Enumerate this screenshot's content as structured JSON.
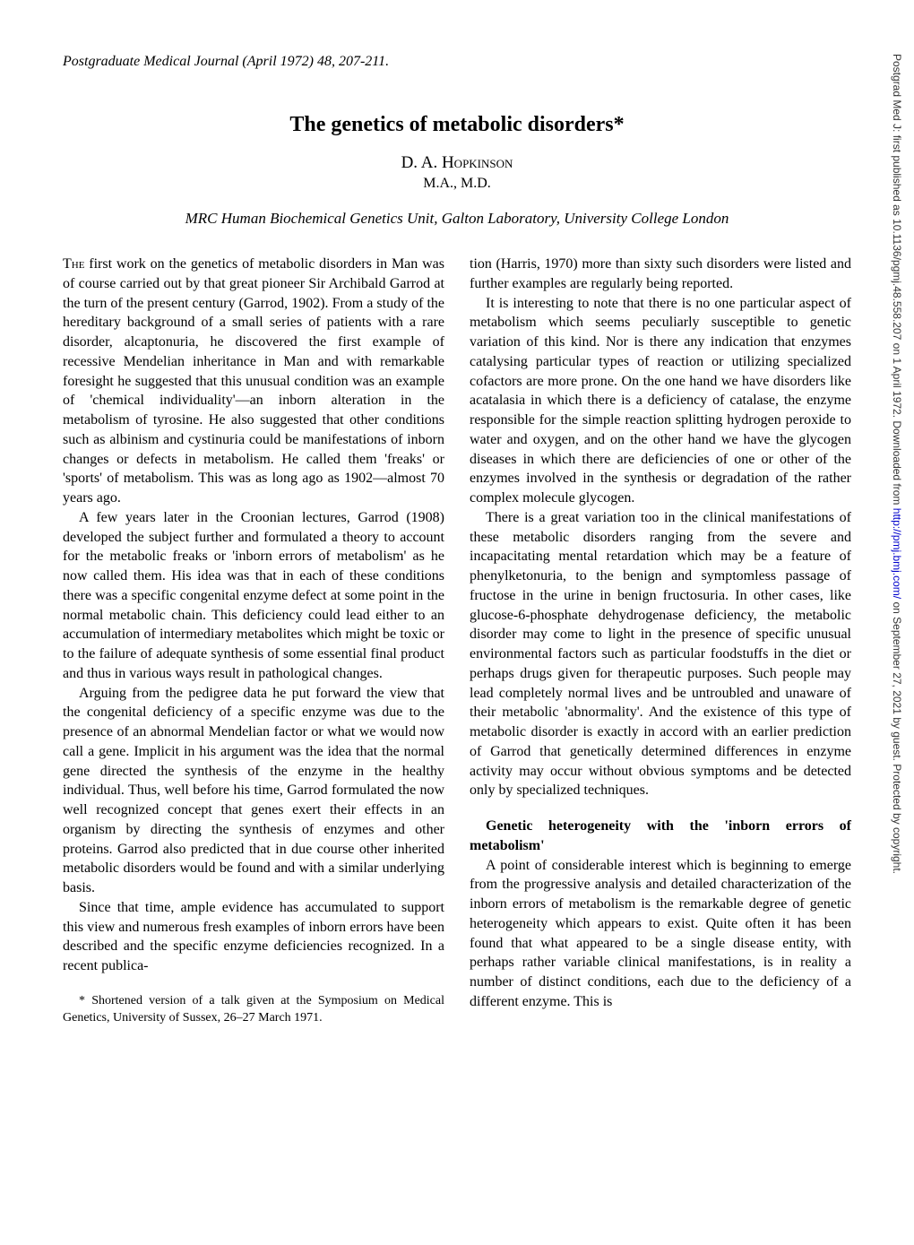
{
  "journal_header": "Postgraduate Medical Journal (April 1972) 48, 207-211.",
  "title": "The genetics of metabolic disorders*",
  "author": "D. A. Hopkinson",
  "degrees": "M.A., M.D.",
  "affiliation": "MRC Human Biochemical Genetics Unit, Galton Laboratory, University College London",
  "left_column": {
    "p1_first": "The",
    "p1": " first work on the genetics of metabolic disorders in Man was of course carried out by that great pioneer Sir Archibald Garrod at the turn of the present century (Garrod, 1902). From a study of the hereditary background of a small series of patients with a rare disorder, alcaptonuria, he discovered the first example of recessive Mendelian inheritance in Man and with remarkable foresight he suggested that this unusual condition was an example of 'chemical individuality'—an inborn alteration in the metabolism of tyrosine. He also suggested that other conditions such as albinism and cystinuria could be manifestations of inborn changes or defects in metabolism. He called them 'freaks' or 'sports' of metabolism. This was as long ago as 1902—almost 70 years ago.",
    "p2": "A few years later in the Croonian lectures, Garrod (1908) developed the subject further and formulated a theory to account for the metabolic freaks or 'inborn errors of metabolism' as he now called them. His idea was that in each of these conditions there was a specific congenital enzyme defect at some point in the normal metabolic chain. This deficiency could lead either to an accumulation of intermediary metabolites which might be toxic or to the failure of adequate synthesis of some essential final product and thus in various ways result in pathological changes.",
    "p3": "Arguing from the pedigree data he put forward the view that the congenital deficiency of a specific enzyme was due to the presence of an abnormal Mendelian factor or what we would now call a gene. Implicit in his argument was the idea that the normal gene directed the synthesis of the enzyme in the healthy individual. Thus, well before his time, Garrod formulated the now well recognized concept that genes exert their effects in an organism by directing the synthesis of enzymes and other proteins. Garrod also predicted that in due course other inherited metabolic disorders would be found and with a similar underlying basis.",
    "p4": "Since that time, ample evidence has accumulated to support this view and numerous fresh examples of inborn errors have been described and the specific enzyme deficiencies recognized. In a recent publica-",
    "footnote": "* Shortened version of a talk given at the Symposium on Medical Genetics, University of Sussex, 26–27 March 1971."
  },
  "right_column": {
    "p1": "tion (Harris, 1970) more than sixty such disorders were listed and further examples are regularly being reported.",
    "p2": "It is interesting to note that there is no one particular aspect of metabolism which seems peculiarly susceptible to genetic variation of this kind. Nor is there any indication that enzymes catalysing particular types of reaction or utilizing specialized cofactors are more prone. On the one hand we have disorders like acatalasia in which there is a deficiency of catalase, the enzyme responsible for the simple reaction splitting hydrogen peroxide to water and oxygen, and on the other hand we have the glycogen diseases in which there are deficiencies of one or other of the enzymes involved in the synthesis or degradation of the rather complex molecule glycogen.",
    "p3": "There is a great variation too in the clinical manifestations of these metabolic disorders ranging from the severe and incapacitating mental retardation which may be a feature of phenylketonuria, to the benign and symptomless passage of fructose in the urine in benign fructosuria. In other cases, like glucose-6-phosphate dehydrogenase deficiency, the metabolic disorder may come to light in the presence of specific unusual environmental factors such as particular foodstuffs in the diet or perhaps drugs given for therapeutic purposes. Such people may lead completely normal lives and be untroubled and unaware of their metabolic 'abnormality'. And the existence of this type of metabolic disorder is exactly in accord with an earlier prediction of Garrod that genetically determined differences in enzyme activity may occur without obvious symptoms and be detected only by specialized techniques.",
    "section_heading": "Genetic heterogeneity with the 'inborn errors of metabolism'",
    "p4": "A point of considerable interest which is beginning to emerge from the progressive analysis and detailed characterization of the inborn errors of metabolism is the remarkable degree of genetic heterogeneity which appears to exist. Quite often it has been found that what appeared to be a single disease entity, with perhaps rather variable clinical manifestations, is in reality a number of distinct conditions, each due to the deficiency of a different enzyme. This is"
  },
  "sidebar": {
    "text_before": "Postgrad Med J: first published as 10.1136/pgmj.48.558.207 on 1 April 1972. Downloaded from ",
    "link_text": "http://pmj.bmj.com/",
    "text_after": " on September 27, 2021 by guest. Protected by copyright."
  }
}
